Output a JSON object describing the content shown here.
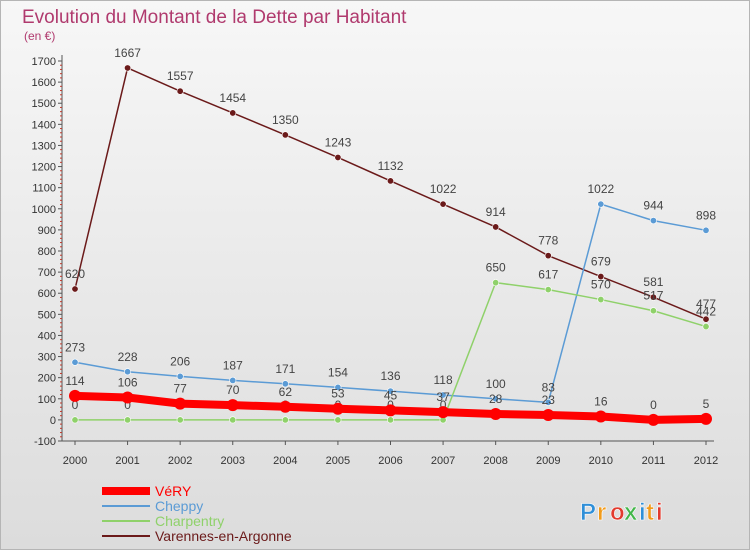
{
  "chart_data": {
    "type": "line",
    "title": "Evolution du Montant de la Dette par Habitant",
    "subtitle": "(en €)",
    "xlabel": "",
    "ylabel": "",
    "ylim": [
      -100,
      1700
    ],
    "yticks": [
      -100,
      0,
      100,
      200,
      300,
      400,
      500,
      600,
      700,
      800,
      900,
      1000,
      1100,
      1200,
      1300,
      1400,
      1500,
      1600,
      1700
    ],
    "x": [
      "2000",
      "2001",
      "2002",
      "2003",
      "2004",
      "2005",
      "2006",
      "2007",
      "2008",
      "2009",
      "2010",
      "2011",
      "2012"
    ],
    "grid": false,
    "legend_position": "bottom-left",
    "series": [
      {
        "name": "Varennes-en-Argonne",
        "color": "#6b1a1a",
        "values": [
          620,
          1667,
          1557,
          1454,
          1350,
          1243,
          1132,
          1022,
          914,
          778,
          679,
          581,
          477
        ],
        "labels": [
          "620",
          "1667",
          "1557",
          "1454",
          "1350",
          "1243",
          "1132",
          "1022",
          "914",
          "778",
          "679",
          "581",
          "477"
        ]
      },
      {
        "name": "Cheppy",
        "color": "#5b9bd5",
        "values": [
          273,
          228,
          206,
          187,
          171,
          154,
          136,
          118,
          100,
          83,
          1022,
          944,
          898
        ],
        "labels": [
          "273",
          "228",
          "206",
          "187",
          "171",
          "154",
          "136",
          "118",
          "100",
          "83",
          "1022",
          "944",
          "898"
        ]
      },
      {
        "name": "Charpentry",
        "color": "#8fd16a",
        "values": [
          0,
          0,
          0,
          0,
          0,
          0,
          0,
          0,
          650,
          617,
          570,
          517,
          442
        ],
        "labels": [
          "0",
          "0",
          "0",
          "0",
          "0",
          "0",
          "0",
          "0",
          "650",
          "617",
          "570",
          "517",
          "442"
        ]
      },
      {
        "name": "VéRY",
        "color": "#ff0000",
        "values": [
          114,
          106,
          77,
          70,
          62,
          53,
          45,
          37,
          28,
          23,
          16,
          0,
          5
        ],
        "labels": [
          "114",
          "106",
          "77",
          "70",
          "62",
          "53",
          "45",
          "37",
          "28",
          "23",
          "16",
          "0",
          "5"
        ]
      }
    ],
    "legend": [
      "VéRY",
      "Cheppy",
      "Charpentry",
      "Varennes-en-Argonne"
    ]
  },
  "logo": {
    "text": "Proxiti"
  },
  "colors": {
    "title": "#b03a6e",
    "axis": "#555555",
    "label": "#444444"
  }
}
